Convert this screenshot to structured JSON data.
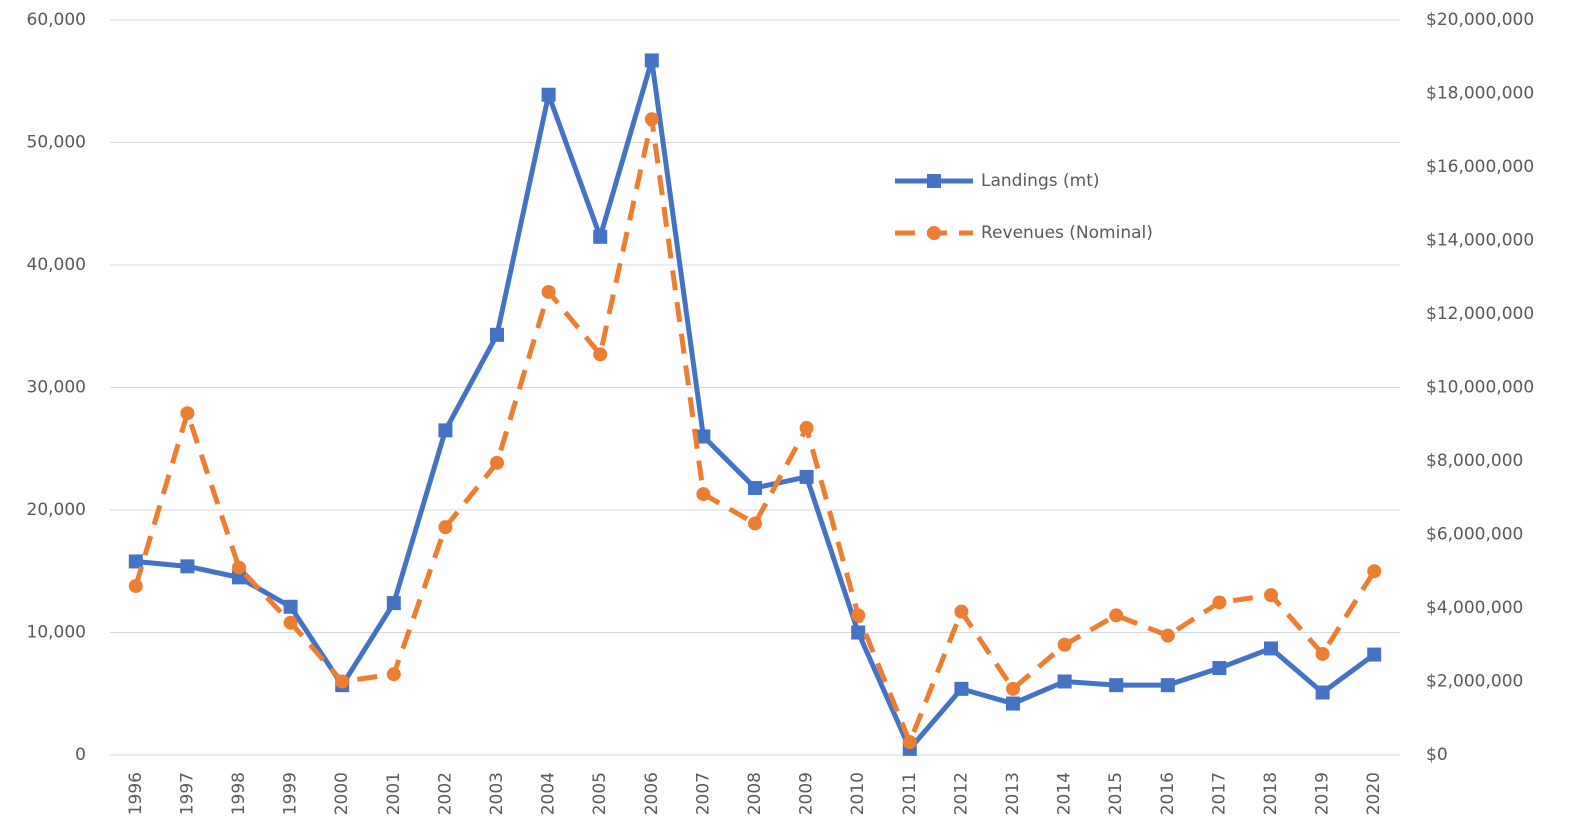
{
  "chart_data": {
    "type": "line",
    "categories": [
      "1996",
      "1997",
      "1998",
      "1999",
      "2000",
      "2001",
      "2002",
      "2003",
      "2004",
      "2005",
      "2006",
      "2007",
      "2008",
      "2009",
      "2010",
      "2011",
      "2012",
      "2013",
      "2014",
      "2015",
      "2016",
      "2017",
      "2018",
      "2019",
      "2020"
    ],
    "series": [
      {
        "name": "Landings (mt)",
        "color": "#4472c4",
        "marker": "square",
        "line_style": "solid",
        "values": [
          15800,
          15400,
          14500,
          12100,
          5700,
          12400,
          26500,
          34300,
          53900,
          42300,
          56700,
          26000,
          21800,
          22700,
          10000,
          500,
          5400,
          4200,
          6000,
          5700,
          5700,
          7100,
          8700,
          5100,
          8200
        ]
      },
      {
        "name": "Revenues (Nominal)",
        "color": "#ed7d31",
        "marker": "circle",
        "line_style": "dashed",
        "axis": "y2",
        "values": [
          4600000,
          9300000,
          5100000,
          3600000,
          2000000,
          2200000,
          6200000,
          7950000,
          12600000,
          10900000,
          17300000,
          7100000,
          6300000,
          8900000,
          3800000,
          350000,
          3900000,
          1800000,
          3000000,
          3800000,
          3250000,
          4150000,
          4350000,
          2750000,
          5000000
        ]
      }
    ],
    "ylim": [
      0,
      60000
    ],
    "yticks": [
      0,
      {
        "value": 10000,
        "label": "10,000"
      },
      {
        "value": 20000,
        "label": "20,000"
      },
      {
        "value": 30000,
        "label": "30,000"
      },
      {
        "value": 40000,
        "label": "40,000"
      },
      {
        "value": 50000,
        "label": "50,000"
      },
      {
        "value": 60000,
        "label": "60,000"
      }
    ],
    "y2lim": [
      0,
      20000000
    ],
    "y2ticks": [
      {
        "value": 0,
        "label": "$0"
      },
      {
        "value": 2000000,
        "label": "$2,000,000"
      },
      {
        "value": 4000000,
        "label": "$4,000,000"
      },
      {
        "value": 6000000,
        "label": "$6,000,000"
      },
      {
        "value": 8000000,
        "label": "$8,000,000"
      },
      {
        "value": 10000000,
        "label": "$10,000,000"
      },
      {
        "value": 12000000,
        "label": "$12,000,000"
      },
      {
        "value": 14000000,
        "label": "$14,000,000"
      },
      {
        "value": 16000000,
        "label": "$16,000,000"
      },
      {
        "value": 18000000,
        "label": "$18,000,000"
      },
      {
        "value": 20000000,
        "label": "$20,000,000"
      }
    ],
    "grid": true,
    "legend": "upper right"
  }
}
